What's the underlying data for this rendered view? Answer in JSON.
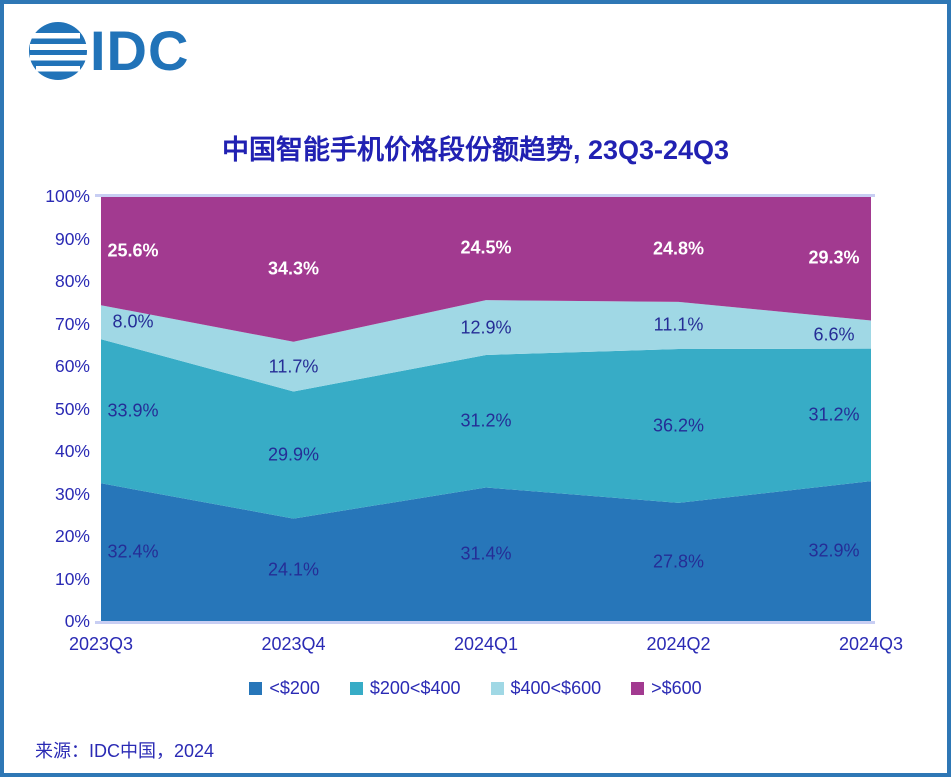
{
  "logo": {
    "text": "IDC"
  },
  "title": "中国智能手机价格段份额趋势, 23Q3-24Q3",
  "source": "来源：IDC中国，2024",
  "colors": {
    "frame_border": "#2E77B5",
    "logo_blue": "#2173B8",
    "title_text": "#2121B2",
    "axis_text": "#2A2AB4",
    "data_label_dark": "#252D96",
    "data_label_light": "#FFFFFF",
    "axis_line": "#C8CEF3"
  },
  "chart_data": {
    "type": "area",
    "stacked": true,
    "normalized_to_100": true,
    "title": "中国智能手机价格段份额趋势, 23Q3-24Q3",
    "categories": [
      "2023Q3",
      "2023Q4",
      "2024Q1",
      "2024Q2",
      "2024Q3"
    ],
    "series": [
      {
        "name": "<$200",
        "color": "#2776B9",
        "label_style": "dark",
        "values": [
          32.4,
          24.1,
          31.4,
          27.8,
          32.9
        ]
      },
      {
        "name": "$200<$400",
        "color": "#37ACC6",
        "label_style": "dark",
        "values": [
          33.9,
          29.9,
          31.2,
          36.2,
          31.2
        ]
      },
      {
        "name": "$400<$600",
        "color": "#A0D8E5",
        "label_style": "dark",
        "values": [
          8.0,
          11.7,
          12.9,
          11.1,
          6.6
        ]
      },
      {
        "name": ">$600",
        "color": "#A23A90",
        "label_style": "light",
        "values": [
          25.6,
          34.3,
          24.5,
          24.8,
          29.3
        ]
      }
    ],
    "y_ticks": [
      "100%",
      "90%",
      "80%",
      "70%",
      "60%",
      "50%",
      "40%",
      "30%",
      "20%",
      "10%",
      "0%"
    ],
    "ylim": [
      0,
      100
    ],
    "grid": false,
    "legend_position": "bottom"
  }
}
